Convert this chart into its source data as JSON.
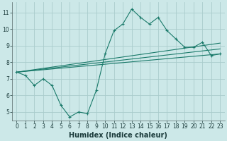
{
  "background_color": "#cce8e8",
  "grid_color": "#aacccc",
  "line_color": "#1a7a6a",
  "xlabel": "Humidex (Indice chaleur)",
  "xlim": [
    -0.5,
    23.5
  ],
  "ylim": [
    4.5,
    11.6
  ],
  "yticks": [
    5,
    6,
    7,
    8,
    9,
    10,
    11
  ],
  "xticks": [
    0,
    1,
    2,
    3,
    4,
    5,
    6,
    7,
    8,
    9,
    10,
    11,
    12,
    13,
    14,
    15,
    16,
    17,
    18,
    19,
    20,
    21,
    22,
    23
  ],
  "main_x": [
    0,
    1,
    2,
    3,
    4,
    5,
    6,
    7,
    8,
    9,
    10,
    11,
    12,
    13,
    14,
    15,
    16,
    17,
    18,
    19,
    20,
    21,
    22,
    23
  ],
  "main_y": [
    7.4,
    7.2,
    6.6,
    7.0,
    6.6,
    5.4,
    4.7,
    5.0,
    4.9,
    6.3,
    8.5,
    9.9,
    10.3,
    11.2,
    10.7,
    10.3,
    10.7,
    9.9,
    9.4,
    8.9,
    8.9,
    9.2,
    8.4,
    8.5
  ],
  "trend_lines": [
    {
      "x": [
        0,
        23
      ],
      "y": [
        7.4,
        8.5
      ]
    },
    {
      "x": [
        0,
        23
      ],
      "y": [
        7.4,
        8.8
      ]
    },
    {
      "x": [
        0,
        23
      ],
      "y": [
        7.4,
        9.15
      ]
    }
  ],
  "xlabel_fontsize": 7,
  "tick_fontsize": 5.5
}
